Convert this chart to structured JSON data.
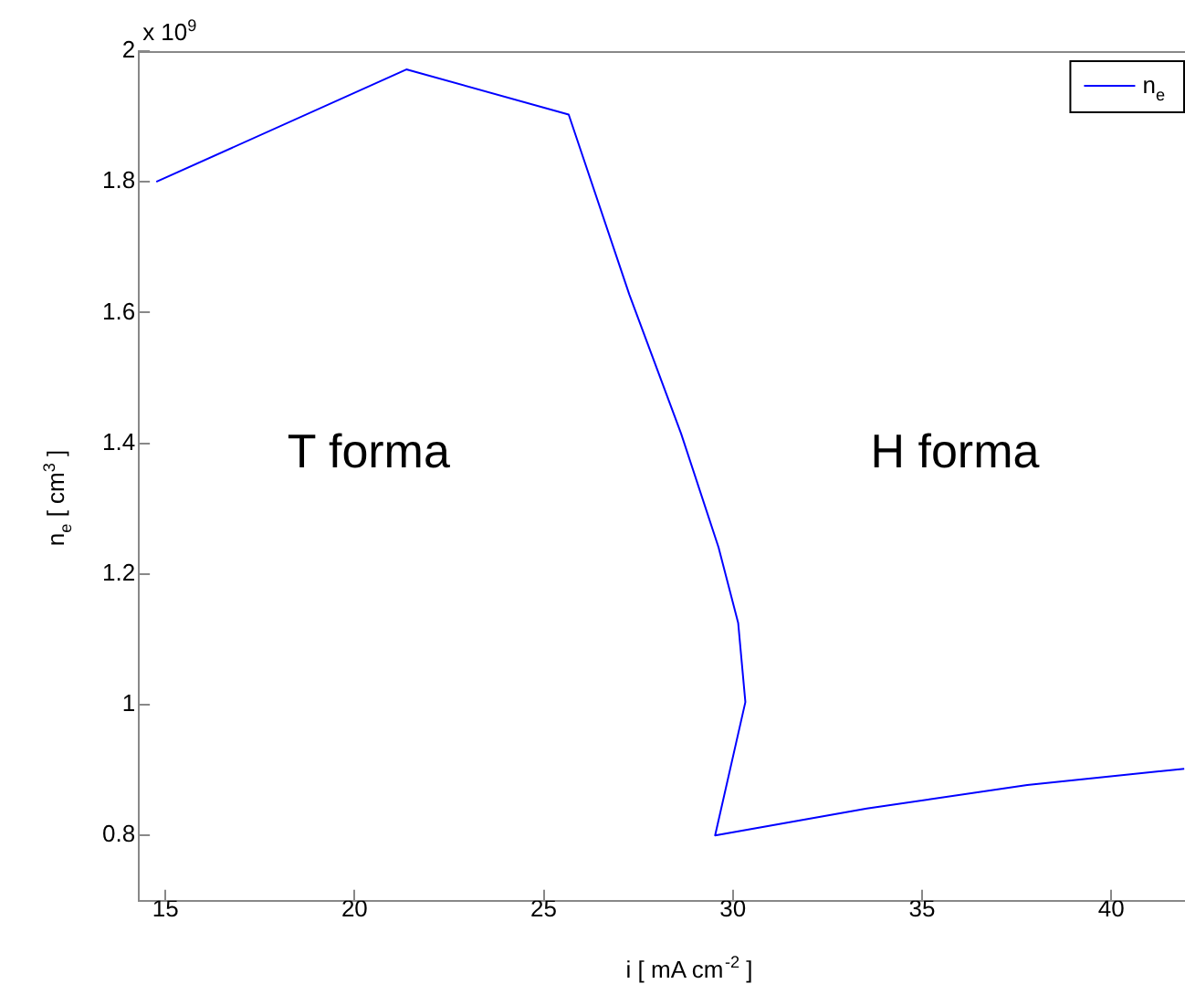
{
  "chart_data": {
    "type": "line",
    "xlabel": "i [ mA cm$^{-2}$ ]",
    "ylabel": "n$_{e}$ [ cm$^{3}$ ]",
    "annotations": [
      "x 10$^{9}$",
      "T forma",
      "H forma"
    ],
    "series": [
      {
        "name": "n$_{e}$",
        "color": "#0000ff",
        "x": [
          14.76,
          21.37,
          25.66,
          27.26,
          28.63,
          29.62,
          30.14,
          30.33,
          29.53,
          33.54,
          37.78,
          41.93
        ],
        "values": [
          1.8,
          1.972,
          1.903,
          1.628,
          1.415,
          1.241,
          1.125,
          1.004,
          0.8,
          0.841,
          0.877,
          0.902
        ]
      }
    ],
    "xlim": [
      14.3,
      41.95
    ],
    "ylim": [
      0.7,
      2.0
    ],
    "xticks": [
      15,
      20,
      25,
      30,
      35,
      40
    ],
    "yticks": [
      0.8,
      1,
      1.2,
      1.4,
      1.6,
      1.8,
      2
    ],
    "legend": "top right",
    "grid": false,
    "marker": "none",
    "line_style": "solid"
  }
}
